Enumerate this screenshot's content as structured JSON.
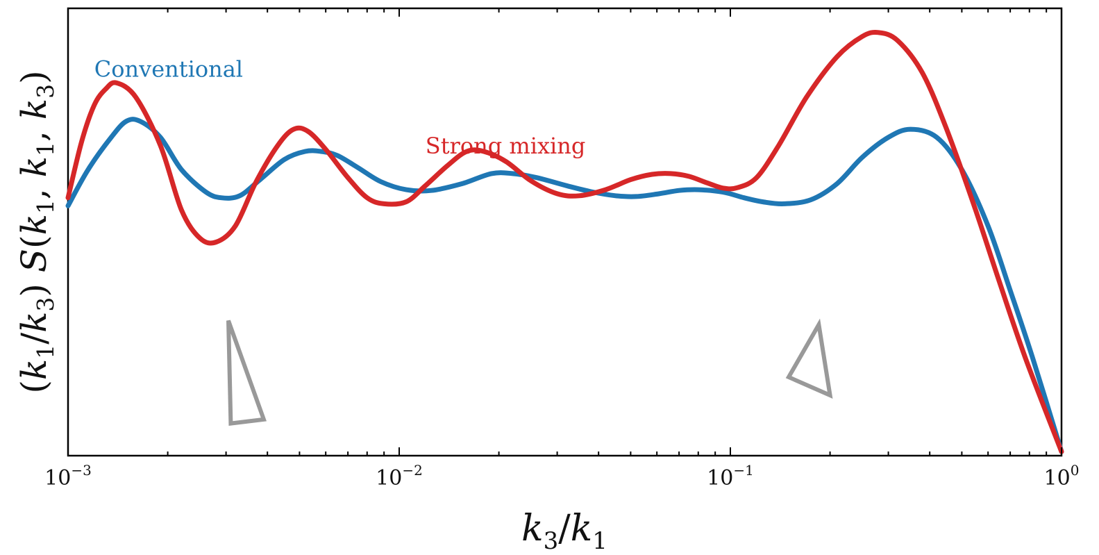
{
  "chart_data": {
    "type": "line",
    "xscale": "log",
    "xlim": [
      0.001,
      1
    ],
    "yticks_shown": false,
    "grid": false,
    "xlabel": "k3/k1",
    "ylabel": "(k1/k3) S(k1, k1, k3)",
    "xticks": [
      {
        "value": 0.001,
        "base": "10",
        "exp": "−3"
      },
      {
        "value": 0.01,
        "base": "10",
        "exp": "−2"
      },
      {
        "value": 0.1,
        "base": "10",
        "exp": "−1"
      },
      {
        "value": 1,
        "base": "10",
        "exp": "0"
      }
    ],
    "series": [
      {
        "name": "Conventional",
        "color": "#1f77b4",
        "x": [
          0.001,
          0.00115,
          0.00135,
          0.0015,
          0.00165,
          0.0019,
          0.0022,
          0.0026,
          0.0029,
          0.0033,
          0.0038,
          0.0045,
          0.0052,
          0.0058,
          0.0065,
          0.0075,
          0.0088,
          0.0105,
          0.0125,
          0.0155,
          0.019,
          0.022,
          0.026,
          0.032,
          0.038,
          0.045,
          0.052,
          0.061,
          0.07,
          0.08,
          0.095,
          0.11,
          0.125,
          0.145,
          0.175,
          0.21,
          0.25,
          0.3,
          0.35,
          0.42,
          0.5,
          0.6,
          0.7,
          0.82,
          1.0
        ],
        "y": [
          0.61,
          0.7,
          0.78,
          0.82,
          0.82,
          0.78,
          0.7,
          0.645,
          0.63,
          0.635,
          0.675,
          0.725,
          0.745,
          0.745,
          0.735,
          0.705,
          0.67,
          0.65,
          0.648,
          0.665,
          0.69,
          0.69,
          0.68,
          0.66,
          0.645,
          0.635,
          0.633,
          0.64,
          0.648,
          0.65,
          0.644,
          0.63,
          0.62,
          0.615,
          0.625,
          0.665,
          0.73,
          0.78,
          0.8,
          0.78,
          0.7,
          0.56,
          0.4,
          0.23,
          0.0
        ],
        "label_pos": [
          0.0012,
          0.93
        ]
      },
      {
        "name": "Strong mixing",
        "color": "#d62728",
        "x": [
          0.001,
          0.0011,
          0.0012,
          0.0013,
          0.0014,
          0.0016,
          0.0019,
          0.0022,
          0.0025,
          0.0028,
          0.0032,
          0.0037,
          0.0043,
          0.0048,
          0.0053,
          0.006,
          0.007,
          0.008,
          0.009,
          0.0105,
          0.012,
          0.014,
          0.016,
          0.018,
          0.021,
          0.025,
          0.03,
          0.035,
          0.042,
          0.05,
          0.058,
          0.066,
          0.075,
          0.085,
          0.095,
          0.105,
          0.12,
          0.14,
          0.17,
          0.21,
          0.25,
          0.28,
          0.32,
          0.38,
          0.45,
          0.55,
          0.65,
          0.78,
          1.0
        ],
        "y": [
          0.63,
          0.77,
          0.86,
          0.9,
          0.915,
          0.88,
          0.76,
          0.6,
          0.53,
          0.52,
          0.56,
          0.67,
          0.76,
          0.8,
          0.795,
          0.75,
          0.68,
          0.63,
          0.615,
          0.62,
          0.66,
          0.71,
          0.745,
          0.745,
          0.72,
          0.672,
          0.64,
          0.635,
          0.65,
          0.675,
          0.688,
          0.69,
          0.683,
          0.667,
          0.654,
          0.655,
          0.68,
          0.76,
          0.88,
          0.98,
          1.03,
          1.04,
          1.02,
          0.94,
          0.8,
          0.6,
          0.42,
          0.23,
          0.0
        ],
        "label_pos": [
          0.012,
          0.74
        ]
      }
    ],
    "annotations": [
      {
        "type": "slope-triangle",
        "color": "#999999",
        "vertices": [
          [
            0.00305,
            0.325
          ],
          [
            0.0031,
            0.07
          ],
          [
            0.0039,
            0.08
          ]
        ]
      },
      {
        "type": "slope-triangle",
        "color": "#999999",
        "vertices": [
          [
            0.15,
            0.185
          ],
          [
            0.185,
            0.315
          ],
          [
            0.2,
            0.14
          ]
        ]
      }
    ]
  }
}
